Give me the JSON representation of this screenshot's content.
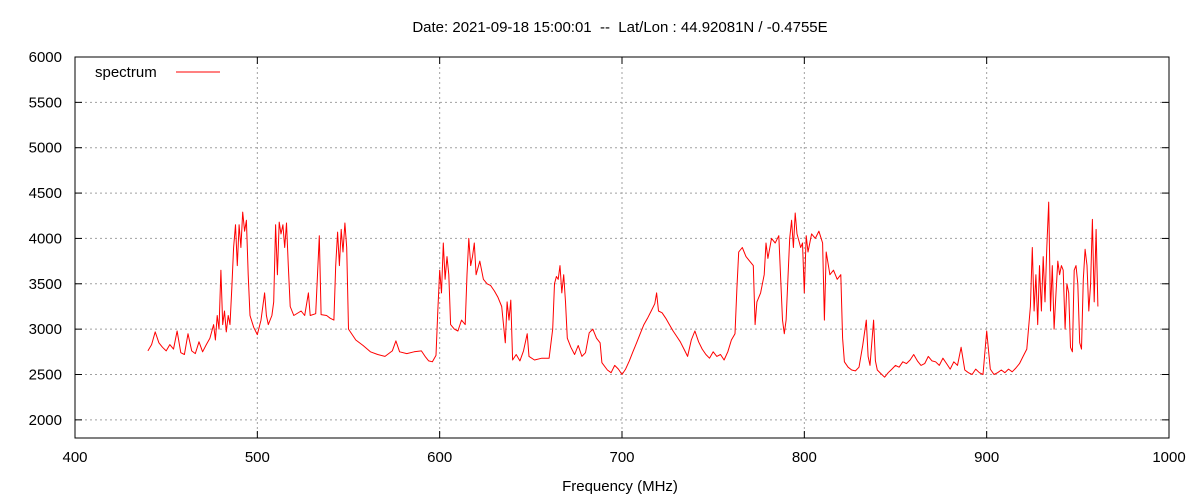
{
  "chart_data": {
    "type": "line",
    "title": "Date: 2021-09-18 15:00:01  --  Lat/Lon : 44.92081N / -0.4755E",
    "xlabel": "Frequency (MHz)",
    "ylabel": "",
    "xlim": [
      400,
      1000
    ],
    "ylim": [
      1800,
      6000
    ],
    "xticks": [
      400,
      500,
      600,
      700,
      800,
      900,
      1000
    ],
    "yticks": [
      2000,
      2500,
      3000,
      3500,
      4000,
      4500,
      5000,
      5500,
      6000
    ],
    "grid": true,
    "legend_position": "top-left",
    "series": [
      {
        "name": "spectrum",
        "color": "#ff0000",
        "points": [
          [
            440,
            2760
          ],
          [
            442,
            2830
          ],
          [
            444,
            2970
          ],
          [
            446,
            2850
          ],
          [
            448,
            2800
          ],
          [
            450,
            2760
          ],
          [
            452,
            2830
          ],
          [
            454,
            2780
          ],
          [
            456,
            2980
          ],
          [
            458,
            2740
          ],
          [
            460,
            2720
          ],
          [
            462,
            2950
          ],
          [
            464,
            2760
          ],
          [
            466,
            2730
          ],
          [
            468,
            2860
          ],
          [
            470,
            2750
          ],
          [
            472,
            2830
          ],
          [
            474,
            2900
          ],
          [
            476,
            3050
          ],
          [
            477,
            2880
          ],
          [
            478,
            3150
          ],
          [
            479,
            3000
          ],
          [
            480,
            3650
          ],
          [
            481,
            3050
          ],
          [
            482,
            3200
          ],
          [
            483,
            2970
          ],
          [
            484,
            3150
          ],
          [
            485,
            3050
          ],
          [
            486,
            3450
          ],
          [
            487,
            3900
          ],
          [
            488,
            4150
          ],
          [
            489,
            3700
          ],
          [
            490,
            4150
          ],
          [
            491,
            3900
          ],
          [
            492,
            4290
          ],
          [
            493,
            4080
          ],
          [
            494,
            4200
          ],
          [
            495,
            3600
          ],
          [
            496,
            3150
          ],
          [
            498,
            3020
          ],
          [
            500,
            2940
          ],
          [
            502,
            3100
          ],
          [
            504,
            3400
          ],
          [
            505,
            3150
          ],
          [
            506,
            3050
          ],
          [
            508,
            3150
          ],
          [
            509,
            3300
          ],
          [
            510,
            4150
          ],
          [
            511,
            3600
          ],
          [
            512,
            4180
          ],
          [
            513,
            4050
          ],
          [
            514,
            4150
          ],
          [
            515,
            3900
          ],
          [
            516,
            4170
          ],
          [
            517,
            3700
          ],
          [
            518,
            3250
          ],
          [
            520,
            3150
          ],
          [
            524,
            3200
          ],
          [
            526,
            3150
          ],
          [
            528,
            3400
          ],
          [
            529,
            3150
          ],
          [
            532,
            3170
          ],
          [
            534,
            4030
          ],
          [
            535,
            3160
          ],
          [
            538,
            3150
          ],
          [
            540,
            3120
          ],
          [
            542,
            3100
          ],
          [
            543,
            3700
          ],
          [
            544,
            4070
          ],
          [
            545,
            3700
          ],
          [
            546,
            4100
          ],
          [
            547,
            3850
          ],
          [
            548,
            4170
          ],
          [
            549,
            3900
          ],
          [
            550,
            3000
          ],
          [
            554,
            2880
          ],
          [
            558,
            2820
          ],
          [
            562,
            2750
          ],
          [
            566,
            2720
          ],
          [
            570,
            2700
          ],
          [
            574,
            2760
          ],
          [
            576,
            2870
          ],
          [
            578,
            2750
          ],
          [
            582,
            2730
          ],
          [
            586,
            2750
          ],
          [
            590,
            2760
          ],
          [
            592,
            2700
          ],
          [
            594,
            2650
          ],
          [
            596,
            2640
          ],
          [
            598,
            2710
          ],
          [
            599,
            3200
          ],
          [
            600,
            3650
          ],
          [
            601,
            3400
          ],
          [
            602,
            3950
          ],
          [
            603,
            3550
          ],
          [
            604,
            3800
          ],
          [
            605,
            3600
          ],
          [
            606,
            3050
          ],
          [
            608,
            3000
          ],
          [
            610,
            2980
          ],
          [
            612,
            3100
          ],
          [
            614,
            3050
          ],
          [
            615,
            3600
          ],
          [
            616,
            4000
          ],
          [
            617,
            3700
          ],
          [
            618,
            3800
          ],
          [
            619,
            3950
          ],
          [
            620,
            3600
          ],
          [
            622,
            3750
          ],
          [
            624,
            3550
          ],
          [
            626,
            3500
          ],
          [
            628,
            3480
          ],
          [
            630,
            3420
          ],
          [
            632,
            3350
          ],
          [
            634,
            3250
          ],
          [
            636,
            2850
          ],
          [
            637,
            3300
          ],
          [
            638,
            3100
          ],
          [
            639,
            3320
          ],
          [
            640,
            2660
          ],
          [
            642,
            2720
          ],
          [
            644,
            2650
          ],
          [
            646,
            2760
          ],
          [
            648,
            2950
          ],
          [
            649,
            2700
          ],
          [
            652,
            2660
          ],
          [
            656,
            2680
          ],
          [
            660,
            2680
          ],
          [
            662,
            3000
          ],
          [
            663,
            3500
          ],
          [
            664,
            3580
          ],
          [
            665,
            3550
          ],
          [
            666,
            3700
          ],
          [
            667,
            3400
          ],
          [
            668,
            3600
          ],
          [
            669,
            3300
          ],
          [
            670,
            2900
          ],
          [
            672,
            2800
          ],
          [
            674,
            2720
          ],
          [
            676,
            2820
          ],
          [
            678,
            2700
          ],
          [
            680,
            2740
          ],
          [
            682,
            2960
          ],
          [
            684,
            3000
          ],
          [
            686,
            2900
          ],
          [
            688,
            2850
          ],
          [
            689,
            2630
          ],
          [
            692,
            2550
          ],
          [
            694,
            2520
          ],
          [
            696,
            2600
          ],
          [
            698,
            2560
          ],
          [
            700,
            2500
          ],
          [
            702,
            2560
          ],
          [
            704,
            2650
          ],
          [
            706,
            2750
          ],
          [
            708,
            2850
          ],
          [
            710,
            2950
          ],
          [
            712,
            3050
          ],
          [
            714,
            3120
          ],
          [
            716,
            3200
          ],
          [
            718,
            3280
          ],
          [
            719,
            3400
          ],
          [
            720,
            3200
          ],
          [
            722,
            3180
          ],
          [
            724,
            3120
          ],
          [
            726,
            3050
          ],
          [
            728,
            2980
          ],
          [
            730,
            2920
          ],
          [
            732,
            2860
          ],
          [
            734,
            2780
          ],
          [
            736,
            2700
          ],
          [
            738,
            2880
          ],
          [
            740,
            2980
          ],
          [
            742,
            2860
          ],
          [
            744,
            2780
          ],
          [
            746,
            2720
          ],
          [
            748,
            2680
          ],
          [
            750,
            2750
          ],
          [
            752,
            2700
          ],
          [
            754,
            2720
          ],
          [
            756,
            2660
          ],
          [
            758,
            2750
          ],
          [
            760,
            2880
          ],
          [
            762,
            2950
          ],
          [
            763,
            3450
          ],
          [
            764,
            3850
          ],
          [
            766,
            3900
          ],
          [
            768,
            3800
          ],
          [
            770,
            3750
          ],
          [
            772,
            3700
          ],
          [
            773,
            3050
          ],
          [
            774,
            3300
          ],
          [
            776,
            3400
          ],
          [
            778,
            3600
          ],
          [
            779,
            3950
          ],
          [
            780,
            3780
          ],
          [
            782,
            4000
          ],
          [
            784,
            3950
          ],
          [
            786,
            4030
          ],
          [
            788,
            3100
          ],
          [
            789,
            2950
          ],
          [
            790,
            3100
          ],
          [
            792,
            4000
          ],
          [
            793,
            4200
          ],
          [
            794,
            3900
          ],
          [
            795,
            4280
          ],
          [
            796,
            4050
          ],
          [
            798,
            3900
          ],
          [
            799,
            3950
          ],
          [
            800,
            3400
          ],
          [
            801,
            4030
          ],
          [
            802,
            3850
          ],
          [
            804,
            4050
          ],
          [
            806,
            4000
          ],
          [
            808,
            4080
          ],
          [
            810,
            3950
          ],
          [
            811,
            3100
          ],
          [
            812,
            3850
          ],
          [
            814,
            3600
          ],
          [
            816,
            3650
          ],
          [
            818,
            3550
          ],
          [
            820,
            3600
          ],
          [
            821,
            2900
          ],
          [
            822,
            2640
          ],
          [
            824,
            2580
          ],
          [
            826,
            2550
          ],
          [
            828,
            2540
          ],
          [
            830,
            2580
          ],
          [
            832,
            2820
          ],
          [
            834,
            3100
          ],
          [
            835,
            2700
          ],
          [
            836,
            2600
          ],
          [
            838,
            3100
          ],
          [
            839,
            2650
          ],
          [
            840,
            2550
          ],
          [
            842,
            2510
          ],
          [
            844,
            2470
          ],
          [
            846,
            2520
          ],
          [
            848,
            2560
          ],
          [
            850,
            2600
          ],
          [
            852,
            2580
          ],
          [
            854,
            2640
          ],
          [
            856,
            2620
          ],
          [
            858,
            2660
          ],
          [
            860,
            2720
          ],
          [
            862,
            2650
          ],
          [
            864,
            2600
          ],
          [
            866,
            2620
          ],
          [
            868,
            2700
          ],
          [
            870,
            2650
          ],
          [
            872,
            2640
          ],
          [
            874,
            2600
          ],
          [
            876,
            2680
          ],
          [
            878,
            2620
          ],
          [
            880,
            2560
          ],
          [
            882,
            2640
          ],
          [
            884,
            2600
          ],
          [
            886,
            2800
          ],
          [
            888,
            2550
          ],
          [
            890,
            2520
          ],
          [
            892,
            2500
          ],
          [
            894,
            2560
          ],
          [
            896,
            2520
          ],
          [
            898,
            2500
          ],
          [
            900,
            2980
          ],
          [
            902,
            2560
          ],
          [
            904,
            2500
          ],
          [
            906,
            2520
          ],
          [
            908,
            2550
          ],
          [
            910,
            2520
          ],
          [
            912,
            2560
          ],
          [
            914,
            2530
          ],
          [
            916,
            2570
          ],
          [
            918,
            2620
          ],
          [
            920,
            2700
          ],
          [
            922,
            2780
          ],
          [
            924,
            3250
          ],
          [
            925,
            3900
          ],
          [
            926,
            3200
          ],
          [
            927,
            3600
          ],
          [
            928,
            3050
          ],
          [
            929,
            3700
          ],
          [
            930,
            3200
          ],
          [
            931,
            3800
          ],
          [
            932,
            3300
          ],
          [
            933,
            3900
          ],
          [
            934,
            4400
          ],
          [
            935,
            3200
          ],
          [
            936,
            3700
          ],
          [
            937,
            3000
          ],
          [
            938,
            3400
          ],
          [
            939,
            3750
          ],
          [
            940,
            3600
          ],
          [
            941,
            3700
          ],
          [
            942,
            3650
          ],
          [
            943,
            3000
          ],
          [
            944,
            3500
          ],
          [
            945,
            3400
          ],
          [
            946,
            2800
          ],
          [
            947,
            2750
          ],
          [
            948,
            3650
          ],
          [
            949,
            3700
          ],
          [
            950,
            3500
          ],
          [
            951,
            2850
          ],
          [
            952,
            2780
          ],
          [
            953,
            3550
          ],
          [
            954,
            3880
          ],
          [
            955,
            3700
          ],
          [
            956,
            3200
          ],
          [
            957,
            3500
          ],
          [
            958,
            4210
          ],
          [
            959,
            3300
          ],
          [
            960,
            4100
          ],
          [
            961,
            3250
          ]
        ]
      }
    ]
  }
}
